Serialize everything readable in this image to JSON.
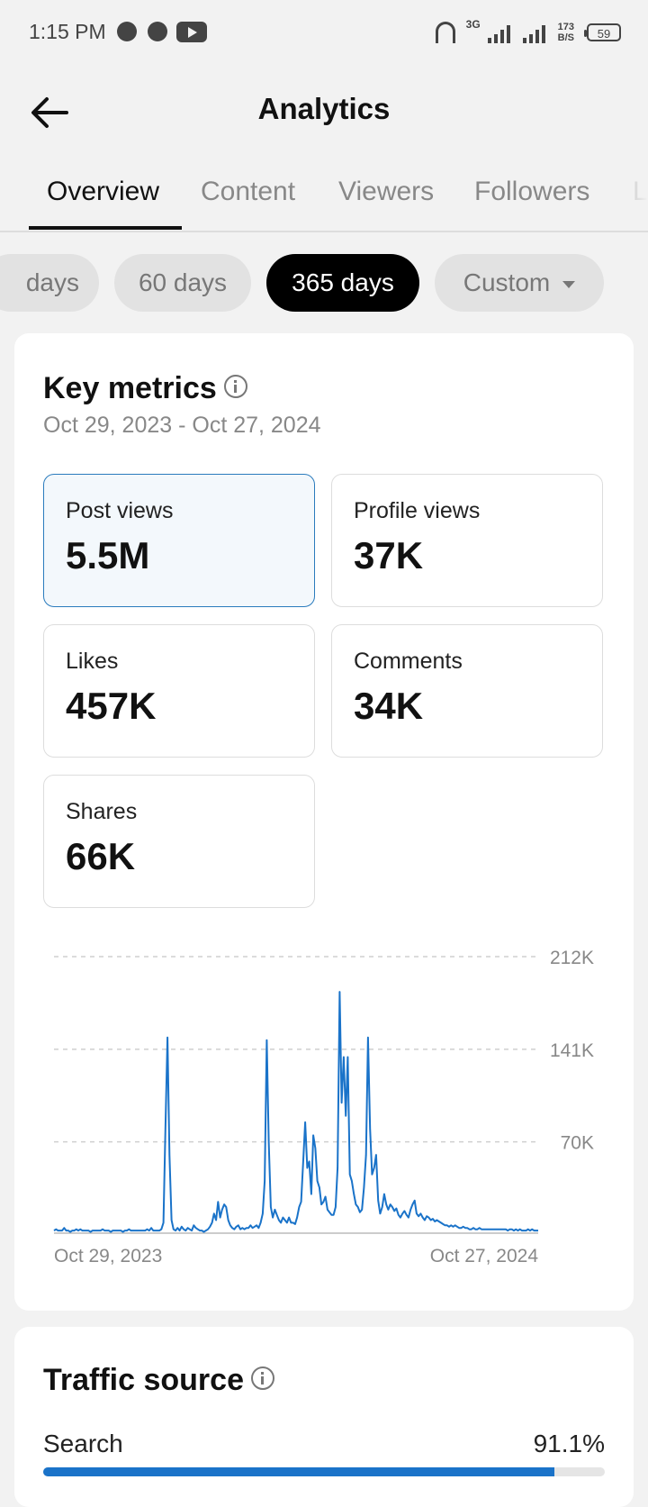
{
  "status_bar": {
    "time": "1:15 PM",
    "network": "3G",
    "speed_value": "173",
    "speed_unit": "B/S",
    "battery": "59"
  },
  "header": {
    "title": "Analytics"
  },
  "tabs": [
    {
      "label": "Overview",
      "active": true
    },
    {
      "label": "Content",
      "active": false
    },
    {
      "label": "Viewers",
      "active": false
    },
    {
      "label": "Followers",
      "active": false
    },
    {
      "label": "L",
      "active": false
    }
  ],
  "periods": [
    {
      "label": "days",
      "active": false
    },
    {
      "label": "60 days",
      "active": false
    },
    {
      "label": "365 days",
      "active": true
    },
    {
      "label": "Custom",
      "active": false
    }
  ],
  "key_metrics": {
    "title": "Key metrics",
    "range": "Oct 29, 2023 - Oct 27, 2024",
    "items": [
      {
        "label": "Post views",
        "value": "5.5M",
        "selected": true
      },
      {
        "label": "Profile views",
        "value": "37K",
        "selected": false
      },
      {
        "label": "Likes",
        "value": "457K",
        "selected": false
      },
      {
        "label": "Comments",
        "value": "34K",
        "selected": false
      },
      {
        "label": "Shares",
        "value": "66K",
        "selected": false
      }
    ]
  },
  "chart_data": {
    "type": "line",
    "series": [
      {
        "values": [
          2,
          3,
          2,
          2,
          2,
          4,
          2,
          2,
          1,
          2,
          2,
          3,
          2,
          3,
          2,
          2,
          2,
          2,
          1,
          2,
          2,
          2,
          2,
          2,
          3,
          2,
          2,
          2,
          1,
          2,
          2,
          2,
          2,
          2,
          1,
          2,
          2,
          3,
          2,
          2,
          2,
          2,
          2,
          2,
          2,
          2,
          3,
          2,
          4,
          2,
          2,
          2,
          2,
          3,
          8,
          80,
          150,
          60,
          10,
          3,
          2,
          4,
          2,
          5,
          3,
          2,
          4,
          3,
          2,
          6,
          4,
          3,
          2,
          2,
          1,
          2,
          3,
          5,
          8,
          15,
          10,
          24,
          12,
          18,
          22,
          20,
          10,
          6,
          4,
          3,
          5,
          6,
          3,
          4,
          3,
          4,
          4,
          6,
          4,
          5,
          6,
          4,
          8,
          15,
          40,
          148,
          70,
          20,
          12,
          18,
          14,
          10,
          8,
          12,
          10,
          8,
          12,
          8,
          8,
          7,
          12,
          20,
          24,
          55,
          85,
          50,
          55,
          30,
          75,
          65,
          40,
          35,
          22,
          24,
          28,
          18,
          16,
          14,
          14,
          20,
          50,
          185,
          100,
          135,
          90,
          135,
          45,
          40,
          30,
          22,
          20,
          16,
          18,
          35,
          60,
          150,
          80,
          45,
          50,
          60,
          25,
          15,
          20,
          30,
          22,
          18,
          22,
          20,
          17,
          19,
          14,
          12,
          15,
          17,
          14,
          12,
          18,
          22,
          25,
          15,
          13,
          15,
          12,
          10,
          13,
          12,
          10,
          11,
          9,
          10,
          9,
          8,
          7,
          6,
          6,
          5,
          6,
          5,
          6,
          5,
          4,
          4,
          5,
          4,
          4,
          3,
          3,
          4,
          3,
          3,
          4,
          3,
          3,
          3,
          3,
          3,
          3,
          3,
          3,
          3,
          3,
          3,
          3,
          3,
          2,
          3,
          3,
          2,
          3,
          2,
          3,
          2,
          2,
          2,
          3,
          2,
          3,
          2,
          2,
          2
        ]
      }
    ],
    "x_start_label": "Oct 29, 2023",
    "x_end_label": "Oct 27, 2024",
    "y_ticks": [
      "212K",
      "141K",
      "70K"
    ],
    "y_tick_values": [
      212,
      141,
      70
    ],
    "ylim": [
      0,
      212
    ],
    "y_unit": "K",
    "color": "#1a73c9",
    "grid": true
  },
  "traffic_source": {
    "title": "Traffic source",
    "items": [
      {
        "name": "Search",
        "percent": "91.1%",
        "fraction": 0.911
      }
    ]
  }
}
